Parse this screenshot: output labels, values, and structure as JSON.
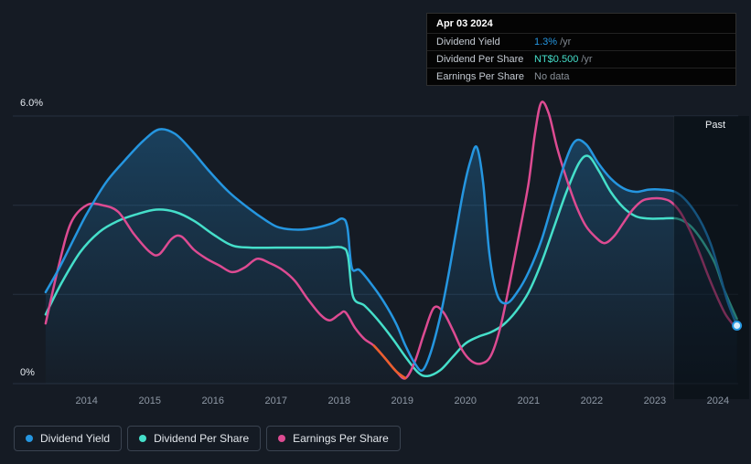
{
  "tooltip": {
    "date": "Apr 03 2024",
    "rows": [
      {
        "label": "Dividend Yield",
        "value": "1.3%",
        "suffix": "/yr",
        "color": "#2596e0"
      },
      {
        "label": "Dividend Per Share",
        "value": "NT$0.500",
        "suffix": "/yr",
        "color": "#45dfca"
      },
      {
        "label": "Earnings Per Share",
        "value": "No data",
        "suffix": "",
        "color": "#8a9199"
      }
    ]
  },
  "legend": {
    "items": [
      {
        "label": "Dividend Yield",
        "color": "#2596e0"
      },
      {
        "label": "Dividend Per Share",
        "color": "#45dfca"
      },
      {
        "label": "Earnings Per Share",
        "color": "#dd4b92"
      }
    ]
  },
  "chart_data": {
    "type": "line",
    "title": "",
    "xlim": [
      2012.83,
      2024.32
    ],
    "ylim": [
      0,
      6
    ],
    "y_unit": "%",
    "y_axis_labels": {
      "top": "6.0%",
      "bottom": "0%"
    },
    "x_ticks": [
      "2014",
      "2015",
      "2016",
      "2017",
      "2018",
      "2019",
      "2020",
      "2021",
      "2022",
      "2023",
      "2024"
    ],
    "gridline_values": [
      0,
      2,
      4,
      6
    ],
    "past_label": "Past",
    "past_region_start": 2023.3,
    "units_note": "Dividend Yield in % per year; Dividend Per Share and Earnings Per Share are drawn on the same 0-6 visual scale (NT$ axis not shown); current values: yield 1.3%/yr, DPS NT$0.500/yr, EPS no data",
    "series": [
      {
        "name": "Dividend Per Share",
        "color": "#45dfca",
        "points": [
          [
            2013.35,
            1.55
          ],
          [
            2013.6,
            2.25
          ],
          [
            2013.9,
            2.95
          ],
          [
            2014.2,
            3.4
          ],
          [
            2014.5,
            3.65
          ],
          [
            2014.8,
            3.8
          ],
          [
            2015.1,
            3.9
          ],
          [
            2015.4,
            3.85
          ],
          [
            2015.7,
            3.65
          ],
          [
            2016.0,
            3.35
          ],
          [
            2016.3,
            3.1
          ],
          [
            2016.6,
            3.05
          ],
          [
            2017.0,
            3.05
          ],
          [
            2017.4,
            3.05
          ],
          [
            2017.8,
            3.05
          ],
          [
            2018.05,
            3.05
          ],
          [
            2018.14,
            2.85
          ],
          [
            2018.22,
            1.95
          ],
          [
            2018.4,
            1.75
          ],
          [
            2018.6,
            1.45
          ],
          [
            2018.85,
            1.0
          ],
          [
            2019.05,
            0.6
          ],
          [
            2019.25,
            0.25
          ],
          [
            2019.4,
            0.17
          ],
          [
            2019.6,
            0.3
          ],
          [
            2019.8,
            0.6
          ],
          [
            2020.0,
            0.9
          ],
          [
            2020.2,
            1.05
          ],
          [
            2020.4,
            1.15
          ],
          [
            2020.6,
            1.32
          ],
          [
            2020.8,
            1.62
          ],
          [
            2021.0,
            2.05
          ],
          [
            2021.2,
            2.7
          ],
          [
            2021.4,
            3.5
          ],
          [
            2021.6,
            4.3
          ],
          [
            2021.8,
            4.95
          ],
          [
            2021.95,
            5.1
          ],
          [
            2022.12,
            4.75
          ],
          [
            2022.3,
            4.3
          ],
          [
            2022.5,
            3.95
          ],
          [
            2022.7,
            3.75
          ],
          [
            2022.9,
            3.7
          ],
          [
            2023.1,
            3.7
          ],
          [
            2023.35,
            3.7
          ],
          [
            2023.55,
            3.55
          ],
          [
            2023.75,
            3.2
          ],
          [
            2023.95,
            2.7
          ],
          [
            2024.1,
            2.1
          ],
          [
            2024.3,
            1.45
          ]
        ]
      },
      {
        "name": "Earnings Per Share",
        "color": "#dd4b92",
        "points": [
          [
            2013.35,
            1.35
          ],
          [
            2013.55,
            2.6
          ],
          [
            2013.75,
            3.6
          ],
          [
            2014.0,
            4.0
          ],
          [
            2014.25,
            4.0
          ],
          [
            2014.5,
            3.85
          ],
          [
            2014.75,
            3.35
          ],
          [
            2015.0,
            2.95
          ],
          [
            2015.15,
            2.9
          ],
          [
            2015.35,
            3.25
          ],
          [
            2015.5,
            3.3
          ],
          [
            2015.7,
            3.0
          ],
          [
            2015.9,
            2.8
          ],
          [
            2016.1,
            2.65
          ],
          [
            2016.3,
            2.5
          ],
          [
            2016.5,
            2.6
          ],
          [
            2016.7,
            2.8
          ],
          [
            2016.9,
            2.7
          ],
          [
            2017.1,
            2.55
          ],
          [
            2017.3,
            2.3
          ],
          [
            2017.5,
            1.9
          ],
          [
            2017.7,
            1.55
          ],
          [
            2017.85,
            1.42
          ],
          [
            2018.0,
            1.55
          ],
          [
            2018.1,
            1.6
          ],
          [
            2018.25,
            1.25
          ],
          [
            2018.4,
            1.0
          ],
          [
            2018.55,
            0.85
          ],
          [
            2018.72,
            0.58
          ],
          [
            2018.9,
            0.28
          ],
          [
            2019.05,
            0.12
          ],
          [
            2019.2,
            0.5
          ],
          [
            2019.35,
            1.15
          ],
          [
            2019.5,
            1.7
          ],
          [
            2019.65,
            1.6
          ],
          [
            2019.8,
            1.2
          ],
          [
            2019.95,
            0.75
          ],
          [
            2020.1,
            0.5
          ],
          [
            2020.25,
            0.45
          ],
          [
            2020.4,
            0.62
          ],
          [
            2020.55,
            1.25
          ],
          [
            2020.7,
            2.25
          ],
          [
            2020.85,
            3.35
          ],
          [
            2021.0,
            4.5
          ],
          [
            2021.1,
            5.6
          ],
          [
            2021.2,
            6.3
          ],
          [
            2021.32,
            6.05
          ],
          [
            2021.45,
            5.3
          ],
          [
            2021.6,
            4.6
          ],
          [
            2021.75,
            4.0
          ],
          [
            2021.9,
            3.55
          ],
          [
            2022.05,
            3.3
          ],
          [
            2022.2,
            3.15
          ],
          [
            2022.35,
            3.3
          ],
          [
            2022.5,
            3.6
          ],
          [
            2022.65,
            3.9
          ],
          [
            2022.8,
            4.1
          ],
          [
            2022.95,
            4.15
          ],
          [
            2023.1,
            4.15
          ],
          [
            2023.25,
            4.08
          ],
          [
            2023.4,
            3.85
          ],
          [
            2023.55,
            3.45
          ],
          [
            2023.7,
            2.95
          ],
          [
            2023.85,
            2.4
          ],
          [
            2024.0,
            1.9
          ],
          [
            2024.12,
            1.55
          ],
          [
            2024.25,
            1.3
          ]
        ]
      },
      {
        "name": "Earnings Per Share (negative segment)",
        "color": "#eb5f2c",
        "points": [
          [
            2018.55,
            0.85
          ],
          [
            2018.72,
            0.58
          ],
          [
            2018.9,
            0.28
          ],
          [
            2019.05,
            0.12
          ]
        ]
      },
      {
        "name": "Dividend Yield",
        "color": "#2596e0",
        "fill": true,
        "end_marker": true,
        "points": [
          [
            2013.35,
            2.05
          ],
          [
            2013.55,
            2.55
          ],
          [
            2013.8,
            3.25
          ],
          [
            2014.0,
            3.8
          ],
          [
            2014.3,
            4.5
          ],
          [
            2014.6,
            5.0
          ],
          [
            2014.9,
            5.45
          ],
          [
            2015.15,
            5.7
          ],
          [
            2015.4,
            5.6
          ],
          [
            2015.65,
            5.25
          ],
          [
            2015.95,
            4.75
          ],
          [
            2016.25,
            4.3
          ],
          [
            2016.55,
            3.95
          ],
          [
            2016.85,
            3.65
          ],
          [
            2017.05,
            3.5
          ],
          [
            2017.35,
            3.45
          ],
          [
            2017.65,
            3.5
          ],
          [
            2017.9,
            3.6
          ],
          [
            2018.05,
            3.7
          ],
          [
            2018.13,
            3.5
          ],
          [
            2018.2,
            2.6
          ],
          [
            2018.32,
            2.55
          ],
          [
            2018.5,
            2.25
          ],
          [
            2018.7,
            1.85
          ],
          [
            2018.9,
            1.35
          ],
          [
            2019.05,
            0.85
          ],
          [
            2019.2,
            0.45
          ],
          [
            2019.32,
            0.3
          ],
          [
            2019.45,
            0.7
          ],
          [
            2019.6,
            1.5
          ],
          [
            2019.72,
            2.35
          ],
          [
            2019.85,
            3.4
          ],
          [
            2019.97,
            4.35
          ],
          [
            2020.08,
            5.0
          ],
          [
            2020.18,
            5.3
          ],
          [
            2020.28,
            4.5
          ],
          [
            2020.38,
            2.9
          ],
          [
            2020.5,
            2.0
          ],
          [
            2020.65,
            1.8
          ],
          [
            2020.82,
            2.05
          ],
          [
            2021.0,
            2.5
          ],
          [
            2021.2,
            3.2
          ],
          [
            2021.4,
            4.15
          ],
          [
            2021.6,
            5.05
          ],
          [
            2021.75,
            5.45
          ],
          [
            2021.92,
            5.35
          ],
          [
            2022.1,
            4.95
          ],
          [
            2022.3,
            4.6
          ],
          [
            2022.5,
            4.38
          ],
          [
            2022.7,
            4.3
          ],
          [
            2022.9,
            4.35
          ],
          [
            2023.1,
            4.35
          ],
          [
            2023.32,
            4.3
          ],
          [
            2023.5,
            4.1
          ],
          [
            2023.7,
            3.7
          ],
          [
            2023.88,
            3.15
          ],
          [
            2024.02,
            2.5
          ],
          [
            2024.15,
            1.85
          ],
          [
            2024.3,
            1.3
          ]
        ]
      }
    ]
  }
}
